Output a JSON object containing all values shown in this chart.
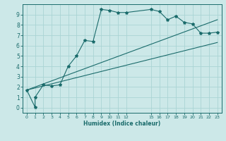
{
  "background_color": "#cce8e8",
  "grid_color": "#aad4d4",
  "line_color": "#1a6b6b",
  "xlabel": "Humidex (Indice chaleur)",
  "xticks": [
    0,
    1,
    2,
    3,
    4,
    5,
    6,
    7,
    8,
    9,
    10,
    11,
    12,
    15,
    16,
    17,
    18,
    19,
    20,
    21,
    22,
    23
  ],
  "yticks": [
    0,
    1,
    2,
    3,
    4,
    5,
    6,
    7,
    8,
    9
  ],
  "ylim": [
    -0.5,
    10.0
  ],
  "xlim": [
    -0.5,
    23.5
  ],
  "line1_x": [
    0,
    1,
    1,
    2,
    3,
    4,
    5,
    6,
    7,
    8,
    9,
    10,
    11,
    12,
    15,
    16,
    17,
    18,
    19,
    20,
    21,
    22,
    23
  ],
  "line1_y": [
    1.7,
    0.05,
    1.0,
    2.2,
    2.1,
    2.2,
    4.0,
    5.0,
    6.5,
    6.4,
    9.5,
    9.4,
    9.2,
    9.2,
    9.5,
    9.3,
    8.5,
    8.85,
    8.25,
    8.1,
    7.2,
    7.2,
    7.3
  ],
  "line2_x": [
    0,
    23
  ],
  "line2_y": [
    1.7,
    6.3
  ],
  "line3_x": [
    0,
    23
  ],
  "line3_y": [
    1.7,
    8.5
  ],
  "figsize": [
    3.2,
    2.0
  ],
  "dpi": 100
}
